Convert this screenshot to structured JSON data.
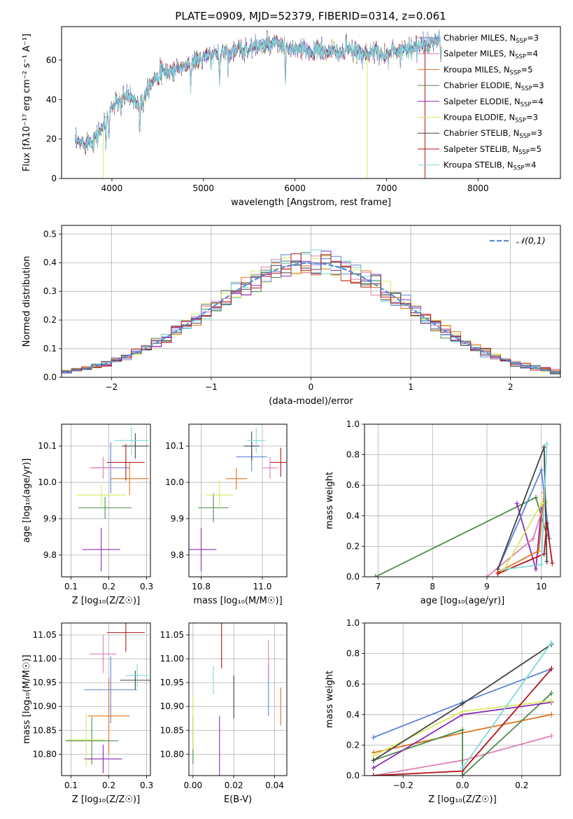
{
  "figure_title": "PLATE=0909, MJD=52379, FIBERID=0314, z=0.061",
  "colors": {
    "chabrier_miles": "#5f84d6",
    "salpeter_miles": "#e07fb7",
    "kroupa_miles": "#e0731c",
    "chabrier_elodie": "#4f8a4f",
    "salpeter_elodie": "#8a2cb5",
    "kroupa_elodie": "#d5ec5c",
    "chabrier_stelib": "#444444",
    "salpeter_stelib": "#b3141a",
    "kroupa_stelib": "#7fd9d9",
    "gauss": "#5b8bd6"
  },
  "legend_models": [
    {
      "key": "chabrier_miles",
      "label": "Chabrier MILES, N",
      "sub": "SSP",
      "tail": "=3"
    },
    {
      "key": "salpeter_miles",
      "label": "Salpeter MILES, N",
      "sub": "SSP",
      "tail": "=4"
    },
    {
      "key": "kroupa_miles",
      "label": "Kroupa MILES, N",
      "sub": "SSP",
      "tail": "=5"
    },
    {
      "key": "chabrier_elodie",
      "label": "Chabrier ELODIE, N",
      "sub": "SSP",
      "tail": "=3"
    },
    {
      "key": "salpeter_elodie",
      "label": "Salpeter ELODIE, N",
      "sub": "SSP",
      "tail": "=4"
    },
    {
      "key": "kroupa_elodie",
      "label": "Kroupa ELODIE, N",
      "sub": "SSP",
      "tail": "=3"
    },
    {
      "key": "chabrier_stelib",
      "label": "Chabrier STELIB, N",
      "sub": "SSP",
      "tail": "=3"
    },
    {
      "key": "salpeter_stelib",
      "label": "Salpeter STELIB, N",
      "sub": "SSP",
      "tail": "=5"
    },
    {
      "key": "kroupa_stelib",
      "label": "Kroupa STELIB, N",
      "sub": "SSP",
      "tail": "=4"
    }
  ],
  "chart_data": [
    {
      "id": "spectrum",
      "type": "line",
      "xlabel": "wavelength [Angstrom, rest frame]",
      "ylabel": "Flux [fλ10⁻¹⁷ erg cm⁻² s⁻¹ A⁻¹]",
      "xlim": [
        3450,
        8900
      ],
      "ylim": [
        0,
        77
      ],
      "xticks": [
        4000,
        5000,
        6000,
        7000,
        8000
      ],
      "yticks": [
        0,
        20,
        40,
        60
      ],
      "continuum_anchors": [
        [
          3600,
          18
        ],
        [
          3700,
          18
        ],
        [
          3800,
          20
        ],
        [
          3900,
          26
        ],
        [
          4000,
          36
        ],
        [
          4100,
          41
        ],
        [
          4200,
          42
        ],
        [
          4300,
          37
        ],
        [
          4400,
          47
        ],
        [
          4500,
          53
        ],
        [
          4600,
          54
        ],
        [
          4800,
          57
        ],
        [
          5000,
          61
        ],
        [
          5200,
          64
        ],
        [
          5400,
          65
        ],
        [
          5600,
          67
        ],
        [
          5800,
          68
        ],
        [
          6000,
          65
        ],
        [
          6200,
          65
        ],
        [
          6400,
          64
        ],
        [
          6600,
          64
        ],
        [
          6800,
          64
        ],
        [
          7000,
          63
        ],
        [
          7200,
          66
        ],
        [
          7400,
          67
        ],
        [
          7500,
          69
        ],
        [
          7600,
          70
        ]
      ],
      "absorption_features": [
        [
          3933,
          14
        ],
        [
          3968,
          12
        ],
        [
          4101,
          10
        ],
        [
          4304,
          12
        ],
        [
          4340,
          6
        ],
        [
          4861,
          8
        ],
        [
          5175,
          16
        ],
        [
          5270,
          5
        ],
        [
          5895,
          20
        ],
        [
          6563,
          -8
        ],
        [
          7594,
          10
        ]
      ],
      "legend": "top-right"
    },
    {
      "id": "residuals",
      "type": "step",
      "xlabel": "(data-model)/error",
      "ylabel": "Normed distribution",
      "xlim": [
        -2.5,
        2.5
      ],
      "ylim": [
        0,
        0.53
      ],
      "xticks": [
        -2,
        -1,
        0,
        1,
        2
      ],
      "yticks": [
        0.0,
        0.1,
        0.2,
        0.3,
        0.4,
        0.5
      ],
      "bin_width": 0.1,
      "gauss_label": "𝒩(0,1)",
      "grid": true,
      "legend": "top-right"
    },
    {
      "id": "age_vs_Z",
      "type": "errorbar",
      "xlabel": "Z [log₁₀(Z/Z☉)]",
      "ylabel": "age  [log₁₀(age/yr)]",
      "xlim": [
        0.075,
        0.31
      ],
      "ylim": [
        9.74,
        10.16
      ],
      "xticks": [
        0.1,
        0.2,
        0.3
      ],
      "yticks": [
        9.8,
        9.9,
        10.0,
        10.1
      ],
      "points": [
        {
          "key": "chabrier_miles",
          "x": 0.205,
          "y": 10.04,
          "xerr": 0.05,
          "yerr": 0.07
        },
        {
          "key": "salpeter_miles",
          "x": 0.185,
          "y": 10.04,
          "xerr": 0.035,
          "yerr": 0.03
        },
        {
          "key": "kroupa_miles",
          "x": 0.255,
          "y": 10.01,
          "xerr": 0.05,
          "yerr": 0.045
        },
        {
          "key": "chabrier_elodie",
          "x": 0.19,
          "y": 9.93,
          "xerr": 0.07,
          "yerr": 0.03
        },
        {
          "key": "salpeter_elodie",
          "x": 0.18,
          "y": 9.815,
          "xerr": 0.05,
          "yerr": 0.06
        },
        {
          "key": "kroupa_elodie",
          "x": 0.18,
          "y": 9.965,
          "xerr": 0.065,
          "yerr": 0.03
        },
        {
          "key": "chabrier_stelib",
          "x": 0.27,
          "y": 10.1,
          "xerr": 0.035,
          "yerr": 0.035
        },
        {
          "key": "salpeter_stelib",
          "x": 0.245,
          "y": 10.055,
          "xerr": 0.05,
          "yerr": 0.05
        },
        {
          "key": "kroupa_stelib",
          "x": 0.26,
          "y": 10.115,
          "xerr": 0.045,
          "yerr": 0.04
        }
      ]
    },
    {
      "id": "age_vs_mass",
      "type": "errorbar",
      "xlabel": "mass [log₁₀(M/M☉)]",
      "xlim": [
        10.76,
        11.08
      ],
      "ylim": [
        9.74,
        10.16
      ],
      "xticks": [
        10.8,
        11.0
      ],
      "yticks": [
        9.8,
        9.9,
        10.0,
        10.1
      ],
      "points": [
        {
          "key": "chabrier_miles",
          "x": 10.965,
          "y": 10.07,
          "xerr": 0.05,
          "yerr": 0.04
        },
        {
          "key": "salpeter_miles",
          "x": 11.025,
          "y": 10.04,
          "xerr": 0.025,
          "yerr": 0.03
        },
        {
          "key": "kroupa_miles",
          "x": 10.915,
          "y": 10.01,
          "xerr": 0.035,
          "yerr": 0.03
        },
        {
          "key": "chabrier_elodie",
          "x": 10.84,
          "y": 9.93,
          "xerr": 0.05,
          "yerr": 0.04
        },
        {
          "key": "salpeter_elodie",
          "x": 10.8,
          "y": 9.815,
          "xerr": 0.05,
          "yerr": 0.06
        },
        {
          "key": "kroupa_elodie",
          "x": 10.86,
          "y": 9.965,
          "xerr": 0.045,
          "yerr": 0.04
        },
        {
          "key": "chabrier_stelib",
          "x": 10.965,
          "y": 10.1,
          "xerr": 0.025,
          "yerr": 0.04
        },
        {
          "key": "salpeter_stelib",
          "x": 11.06,
          "y": 10.055,
          "xerr": 0.035,
          "yerr": 0.04
        },
        {
          "key": "kroupa_stelib",
          "x": 10.98,
          "y": 10.115,
          "xerr": 0.03,
          "yerr": 0.035
        }
      ]
    },
    {
      "id": "massweight_vs_age",
      "type": "line",
      "xlabel": "age  [log₁₀(age/yr)]",
      "ylabel": "mass weight",
      "xlim": [
        6.75,
        10.35
      ],
      "ylim": [
        0,
        1
      ],
      "xticks": [
        7,
        8,
        9,
        10
      ],
      "yticks": [
        0.0,
        0.2,
        0.4,
        0.6,
        0.8,
        1.0
      ],
      "grid": true,
      "series": [
        {
          "key": "chabrier_elodie",
          "points": [
            [
              6.95,
              0.0
            ],
            [
              9.9,
              0.52
            ],
            [
              10.1,
              0.27
            ]
          ]
        },
        {
          "key": "salpeter_elodie",
          "points": [
            [
              9.55,
              0.48
            ],
            [
              9.9,
              0.05
            ],
            [
              10.0,
              0.45
            ]
          ]
        },
        {
          "key": "chabrier_miles",
          "points": [
            [
              9.2,
              0.05
            ],
            [
              10.0,
              0.7
            ],
            [
              10.15,
              0.25
            ]
          ]
        },
        {
          "key": "salpeter_miles",
          "points": [
            [
              9.0,
              0.0
            ],
            [
              9.85,
              0.25
            ],
            [
              10.05,
              0.48
            ]
          ]
        },
        {
          "key": "kroupa_miles",
          "points": [
            [
              9.2,
              0.03
            ],
            [
              9.95,
              0.17
            ],
            [
              10.05,
              0.55
            ]
          ]
        },
        {
          "key": "kroupa_elodie",
          "points": [
            [
              9.3,
              0.04
            ],
            [
              10.0,
              0.48
            ],
            [
              10.1,
              0.49
            ]
          ]
        },
        {
          "key": "chabrier_stelib",
          "points": [
            [
              9.2,
              0.05
            ],
            [
              10.05,
              0.85
            ],
            [
              10.1,
              0.1
            ]
          ]
        },
        {
          "key": "salpeter_stelib",
          "points": [
            [
              9.2,
              0.02
            ],
            [
              10.05,
              0.15
            ],
            [
              10.1,
              0.35
            ],
            [
              10.2,
              0.09
            ]
          ]
        },
        {
          "key": "kroupa_stelib",
          "points": [
            [
              9.35,
              0.05
            ],
            [
              10.0,
              0.08
            ],
            [
              10.1,
              0.87
            ]
          ]
        }
      ]
    },
    {
      "id": "mass_vs_Z",
      "type": "errorbar",
      "xlabel": "Z [log₁₀(Z/Z☉)]",
      "ylabel": "mass [log₁₀(M/M☉)]",
      "xlim": [
        0.075,
        0.31
      ],
      "ylim": [
        10.755,
        11.075
      ],
      "xticks": [
        0.1,
        0.2,
        0.3
      ],
      "yticks": [
        10.8,
        10.85,
        10.9,
        10.95,
        11.0,
        11.05
      ],
      "points": [
        {
          "key": "chabrier_miles",
          "x": 0.205,
          "y": 10.935,
          "xerr": 0.07,
          "yerr": 0.07
        },
        {
          "key": "salpeter_miles",
          "x": 0.185,
          "y": 11.01,
          "xerr": 0.035,
          "yerr": 0.04
        },
        {
          "key": "kroupa_miles",
          "x": 0.2,
          "y": 10.88,
          "xerr": 0.055,
          "yerr": 0.08
        },
        {
          "key": "chabrier_elodie",
          "x": 0.155,
          "y": 10.828,
          "xerr": 0.07,
          "yerr": 0.05
        },
        {
          "key": "salpeter_elodie",
          "x": 0.185,
          "y": 10.79,
          "xerr": 0.05,
          "yerr": 0.03
        },
        {
          "key": "kroupa_elodie",
          "x": 0.14,
          "y": 10.83,
          "xerr": 0.05,
          "yerr": 0.055
        },
        {
          "key": "chabrier_stelib",
          "x": 0.27,
          "y": 10.955,
          "xerr": 0.04,
          "yerr": 0.02
        },
        {
          "key": "salpeter_stelib",
          "x": 0.245,
          "y": 11.055,
          "xerr": 0.05,
          "yerr": 0.04
        },
        {
          "key": "kroupa_stelib",
          "x": 0.275,
          "y": 10.965,
          "xerr": 0.03,
          "yerr": 0.025
        }
      ]
    },
    {
      "id": "mass_vs_ebv",
      "type": "errorbar",
      "xlabel": "E(B-V)",
      "xlim": [
        -0.002,
        0.046
      ],
      "ylim": [
        10.755,
        11.075
      ],
      "xticks": [
        0.0,
        0.02,
        0.04
      ],
      "yticks": [
        10.8,
        10.85,
        10.9,
        10.95,
        11.0,
        11.05
      ],
      "points": [
        {
          "key": "chabrier_miles",
          "x": 0.037,
          "y": 10.935,
          "xerr": 0,
          "yerr": 0.055
        },
        {
          "key": "salpeter_miles",
          "x": 0.037,
          "y": 11.0,
          "xerr": 0,
          "yerr": 0.04
        },
        {
          "key": "kroupa_miles",
          "x": 0.043,
          "y": 10.9,
          "xerr": 0,
          "yerr": 0.04
        },
        {
          "key": "chabrier_elodie",
          "x": 0.0,
          "y": 10.83,
          "xerr": 0,
          "yerr": 0.05
        },
        {
          "key": "salpeter_elodie",
          "x": 0.013,
          "y": 10.81,
          "xerr": 0,
          "yerr": 0.07
        },
        {
          "key": "kroupa_elodie",
          "x": 0.0,
          "y": 10.865,
          "xerr": 0,
          "yerr": 0.055
        },
        {
          "key": "chabrier_stelib",
          "x": 0.02,
          "y": 10.92,
          "xerr": 0,
          "yerr": 0.045
        },
        {
          "key": "salpeter_stelib",
          "x": 0.014,
          "y": 11.03,
          "xerr": 0,
          "yerr": 0.05
        },
        {
          "key": "kroupa_stelib",
          "x": 0.01,
          "y": 10.955,
          "xerr": 0,
          "yerr": 0.03
        }
      ]
    },
    {
      "id": "massweight_vs_Z",
      "type": "line",
      "xlabel": "Z [log₁₀(Z/Z☉)]",
      "ylabel": "mass weight",
      "xlim": [
        -0.33,
        0.33
      ],
      "ylim": [
        0,
        1
      ],
      "xticks": [
        -0.2,
        0.0,
        0.2
      ],
      "yticks": [
        0.0,
        0.2,
        0.4,
        0.6,
        0.8,
        1.0
      ],
      "grid": true,
      "series": [
        {
          "key": "chabrier_miles",
          "points": [
            [
              -0.3,
              0.25
            ],
            [
              0.0,
              0.48
            ],
            [
              0.3,
              0.7
            ]
          ]
        },
        {
          "key": "salpeter_miles",
          "points": [
            [
              -0.3,
              0.0
            ],
            [
              0.0,
              0.1
            ],
            [
              0.3,
              0.26
            ]
          ]
        },
        {
          "key": "kroupa_miles",
          "points": [
            [
              -0.3,
              0.15
            ],
            [
              0.0,
              0.28
            ],
            [
              0.3,
              0.4
            ]
          ]
        },
        {
          "key": "chabrier_elodie",
          "points": [
            [
              -0.3,
              0.1
            ],
            [
              0.0,
              0.3
            ],
            [
              0.0,
              0.0
            ],
            [
              0.3,
              0.54
            ]
          ]
        },
        {
          "key": "salpeter_elodie",
          "points": [
            [
              -0.3,
              0.05
            ],
            [
              0.0,
              0.4
            ],
            [
              0.3,
              0.48
            ]
          ]
        },
        {
          "key": "kroupa_elodie",
          "points": [
            [
              -0.3,
              0.13
            ],
            [
              0.0,
              0.42
            ],
            [
              0.3,
              0.49
            ]
          ]
        },
        {
          "key": "chabrier_stelib",
          "points": [
            [
              -0.3,
              0.1
            ],
            [
              0.0,
              0.47
            ],
            [
              0.3,
              0.86
            ]
          ]
        },
        {
          "key": "salpeter_stelib",
          "points": [
            [
              -0.3,
              0.0
            ],
            [
              0.0,
              0.03
            ],
            [
              0.3,
              0.7
            ]
          ]
        },
        {
          "key": "kroupa_stelib",
          "points": [
            [
              0.0,
              0.05
            ],
            [
              0.3,
              0.87
            ]
          ]
        }
      ]
    }
  ]
}
